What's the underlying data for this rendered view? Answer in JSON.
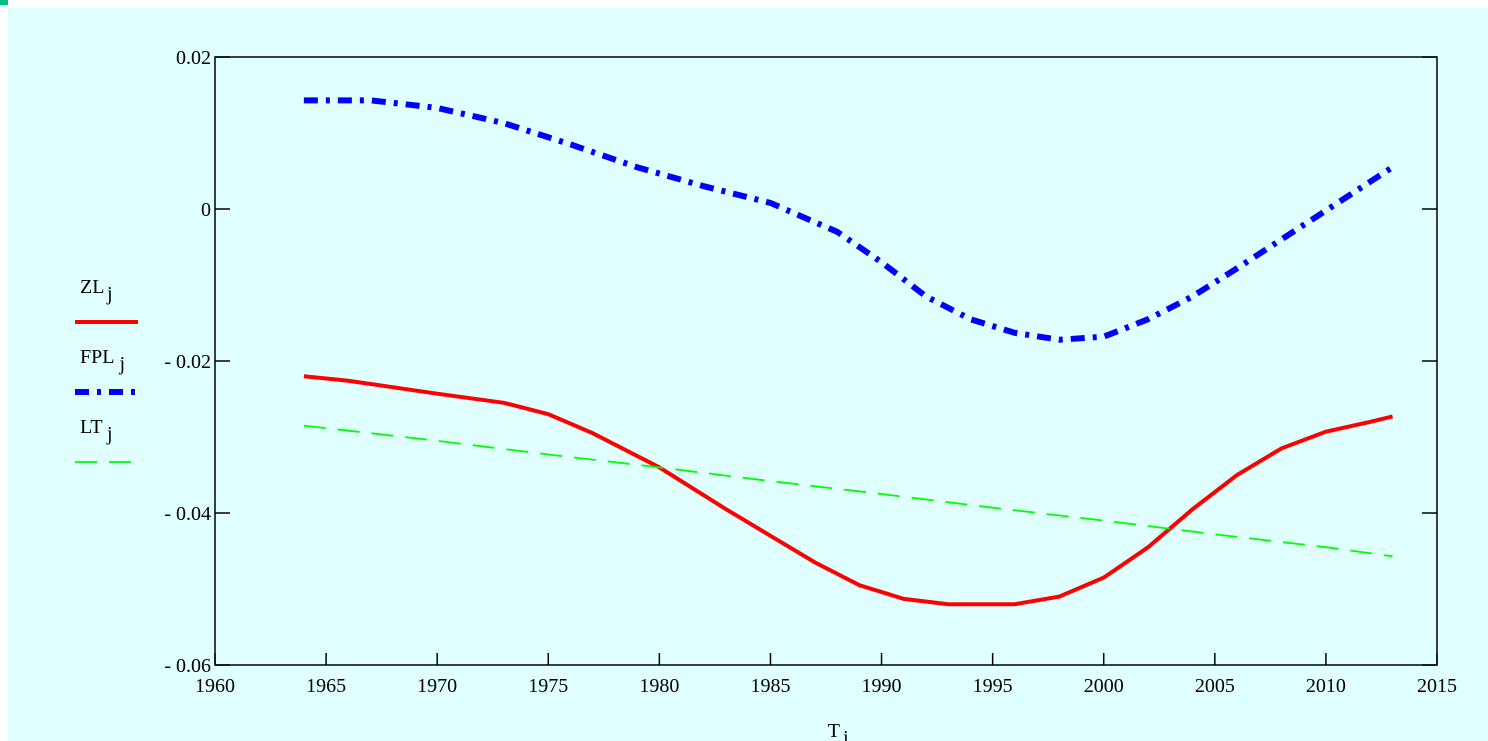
{
  "chart_data": {
    "type": "line",
    "x_label": "T",
    "x_label_subscript": "j",
    "xlim": [
      1960,
      2015
    ],
    "xticks": [
      1960,
      1965,
      1970,
      1975,
      1980,
      1985,
      1990,
      1995,
      2000,
      2005,
      2010,
      2015
    ],
    "ylim": [
      -0.06,
      0.02
    ],
    "yticks": [
      {
        "value": -0.06,
        "label": "- 0.06"
      },
      {
        "value": -0.04,
        "label": "- 0.04"
      },
      {
        "value": -0.02,
        "label": "- 0.02"
      },
      0,
      0.02
    ],
    "legend": "left",
    "series": [
      {
        "name": "ZL",
        "subscript": "j",
        "color": "#ff0000",
        "style": "solid",
        "x": [
          1964,
          1966,
          1970,
          1973,
          1975,
          1977,
          1980,
          1983,
          1985,
          1987,
          1989,
          1991,
          1993,
          1995,
          1996,
          1998,
          2000,
          2002,
          2004,
          2006,
          2008,
          2010,
          2012,
          2013
        ],
        "values": [
          -0.022,
          -0.0226,
          -0.0243,
          -0.0255,
          -0.027,
          -0.0295,
          -0.034,
          -0.0395,
          -0.043,
          -0.0465,
          -0.0495,
          -0.0513,
          -0.052,
          -0.052,
          -0.052,
          -0.051,
          -0.0485,
          -0.0445,
          -0.0395,
          -0.035,
          -0.0315,
          -0.0293,
          -0.028,
          -0.0273
        ]
      },
      {
        "name": "FPL",
        "subscript": "j",
        "color": "#0000ff",
        "style": "dashdot",
        "x": [
          1964,
          1967,
          1970,
          1973,
          1976,
          1979,
          1982,
          1985,
          1988,
          1990,
          1992,
          1994,
          1996,
          1998,
          2000,
          2002,
          2004,
          2006,
          2008,
          2010,
          2013
        ],
        "values": [
          0.0143,
          0.0143,
          0.0133,
          0.0113,
          0.0085,
          0.0055,
          0.003,
          0.0008,
          -0.003,
          -0.007,
          -0.0115,
          -0.0145,
          -0.0163,
          -0.0172,
          -0.0168,
          -0.0145,
          -0.0115,
          -0.0078,
          -0.004,
          -0.0002,
          0.0055
        ]
      },
      {
        "name": "LT",
        "subscript": "j",
        "color": "#00ff00",
        "style": "dashed",
        "x": [
          1964,
          1970,
          1975,
          1980,
          1985,
          1990,
          1995,
          2000,
          2005,
          2010,
          2013
        ],
        "values": [
          -0.0285,
          -0.0305,
          -0.0323,
          -0.034,
          -0.0358,
          -0.0375,
          -0.0393,
          -0.041,
          -0.0428,
          -0.0445,
          -0.0457
        ]
      }
    ]
  }
}
